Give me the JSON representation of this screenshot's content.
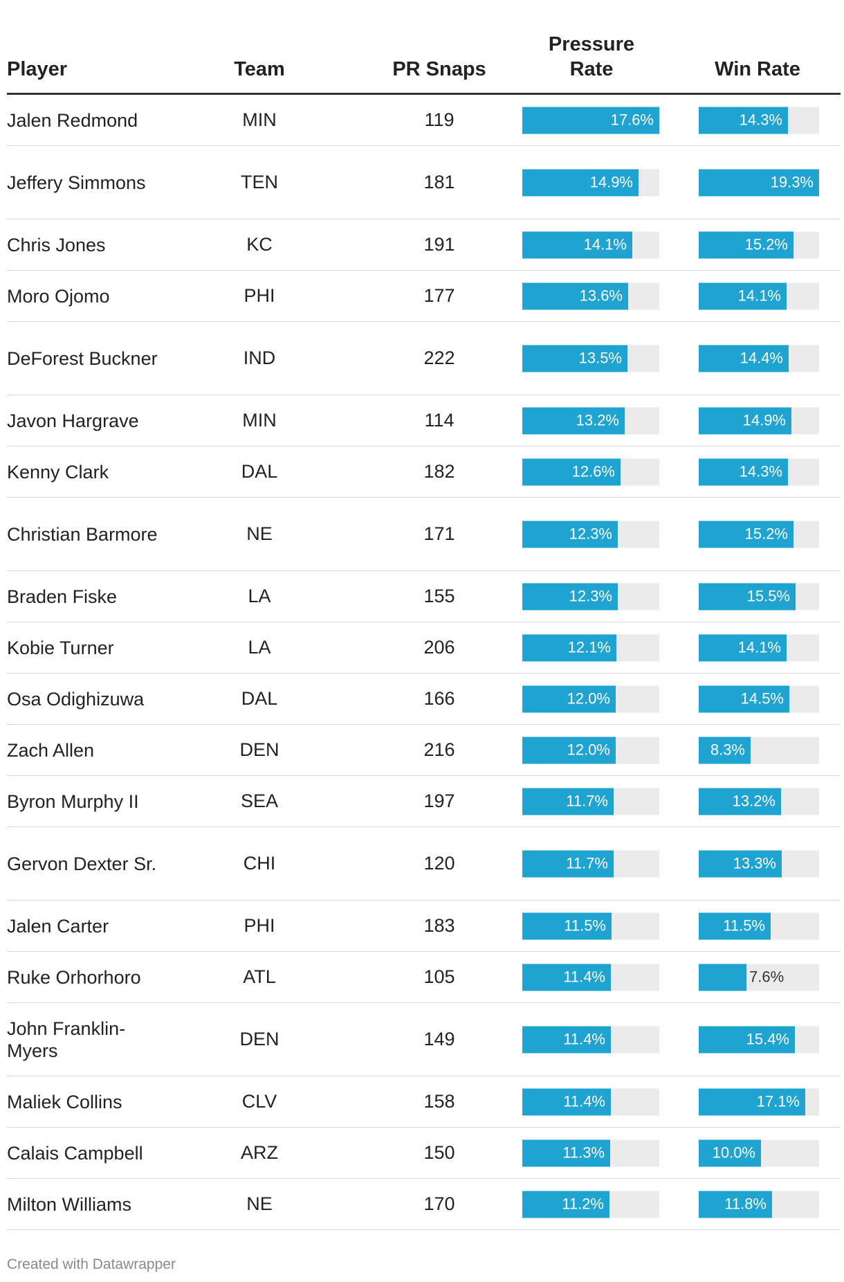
{
  "header": {
    "player": "Player",
    "team": "Team",
    "snaps": "PR Snaps",
    "pressure_rate": "Pressure Rate",
    "win_rate": "Win Rate"
  },
  "colors": {
    "bar": "#1fa3d1",
    "track": "#ebebeb",
    "label_inside": "#ffffff",
    "label_outside": "#333333"
  },
  "chart_data": {
    "type": "table",
    "columns": [
      "Player",
      "Team",
      "PR Snaps",
      "Pressure Rate",
      "Win Rate"
    ],
    "bar_scale_max": {
      "pressure_rate": 17.6,
      "win_rate": 19.3
    },
    "rows": [
      {
        "player": "Jalen Redmond",
        "team": "MIN",
        "snaps": "119",
        "pressure_rate": 17.6,
        "pressure_label": "17.6%",
        "win_rate": 14.3,
        "win_label": "14.3%"
      },
      {
        "player": "Jeffery Simmons",
        "team": "TEN",
        "snaps": "181",
        "pressure_rate": 14.9,
        "pressure_label": "14.9%",
        "win_rate": 19.3,
        "win_label": "19.3%"
      },
      {
        "player": "Chris Jones",
        "team": "KC",
        "snaps": "191",
        "pressure_rate": 14.1,
        "pressure_label": "14.1%",
        "win_rate": 15.2,
        "win_label": "15.2%"
      },
      {
        "player": "Moro Ojomo",
        "team": "PHI",
        "snaps": "177",
        "pressure_rate": 13.6,
        "pressure_label": "13.6%",
        "win_rate": 14.1,
        "win_label": "14.1%"
      },
      {
        "player": "DeForest Buckner",
        "team": "IND",
        "snaps": "222",
        "pressure_rate": 13.5,
        "pressure_label": "13.5%",
        "win_rate": 14.4,
        "win_label": "14.4%"
      },
      {
        "player": "Javon Hargrave",
        "team": "MIN",
        "snaps": "114",
        "pressure_rate": 13.2,
        "pressure_label": "13.2%",
        "win_rate": 14.9,
        "win_label": "14.9%"
      },
      {
        "player": "Kenny Clark",
        "team": "DAL",
        "snaps": "182",
        "pressure_rate": 12.6,
        "pressure_label": "12.6%",
        "win_rate": 14.3,
        "win_label": "14.3%"
      },
      {
        "player": "Christian Barmore",
        "team": "NE",
        "snaps": "171",
        "pressure_rate": 12.3,
        "pressure_label": "12.3%",
        "win_rate": 15.2,
        "win_label": "15.2%"
      },
      {
        "player": "Braden Fiske",
        "team": "LA",
        "snaps": "155",
        "pressure_rate": 12.3,
        "pressure_label": "12.3%",
        "win_rate": 15.5,
        "win_label": "15.5%"
      },
      {
        "player": "Kobie Turner",
        "team": "LA",
        "snaps": "206",
        "pressure_rate": 12.1,
        "pressure_label": "12.1%",
        "win_rate": 14.1,
        "win_label": "14.1%"
      },
      {
        "player": "Osa Odighizuwa",
        "team": "DAL",
        "snaps": "166",
        "pressure_rate": 12.0,
        "pressure_label": "12.0%",
        "win_rate": 14.5,
        "win_label": "14.5%"
      },
      {
        "player": "Zach Allen",
        "team": "DEN",
        "snaps": "216",
        "pressure_rate": 12.0,
        "pressure_label": "12.0%",
        "win_rate": 8.3,
        "win_label": "8.3%"
      },
      {
        "player": "Byron Murphy II",
        "team": "SEA",
        "snaps": "197",
        "pressure_rate": 11.7,
        "pressure_label": "11.7%",
        "win_rate": 13.2,
        "win_label": "13.2%"
      },
      {
        "player": "Gervon Dexter Sr.",
        "team": "CHI",
        "snaps": "120",
        "pressure_rate": 11.7,
        "pressure_label": "11.7%",
        "win_rate": 13.3,
        "win_label": "13.3%"
      },
      {
        "player": "Jalen Carter",
        "team": "PHI",
        "snaps": "183",
        "pressure_rate": 11.5,
        "pressure_label": "11.5%",
        "win_rate": 11.5,
        "win_label": "11.5%"
      },
      {
        "player": "Ruke Orhorhoro",
        "team": "ATL",
        "snaps": "105",
        "pressure_rate": 11.4,
        "pressure_label": "11.4%",
        "win_rate": 7.6,
        "win_label": "7.6%"
      },
      {
        "player": "John Franklin-Myers",
        "team": "DEN",
        "snaps": "149",
        "pressure_rate": 11.4,
        "pressure_label": "11.4%",
        "win_rate": 15.4,
        "win_label": "15.4%"
      },
      {
        "player": "Maliek Collins",
        "team": "CLV",
        "snaps": "158",
        "pressure_rate": 11.4,
        "pressure_label": "11.4%",
        "win_rate": 17.1,
        "win_label": "17.1%"
      },
      {
        "player": "Calais Campbell",
        "team": "ARZ",
        "snaps": "150",
        "pressure_rate": 11.3,
        "pressure_label": "11.3%",
        "win_rate": 10.0,
        "win_label": "10.0%"
      },
      {
        "player": "Milton Williams",
        "team": "NE",
        "snaps": "170",
        "pressure_rate": 11.2,
        "pressure_label": "11.2%",
        "win_rate": 11.8,
        "win_label": "11.8%"
      }
    ]
  },
  "footer": {
    "credit": "Created with Datawrapper"
  }
}
